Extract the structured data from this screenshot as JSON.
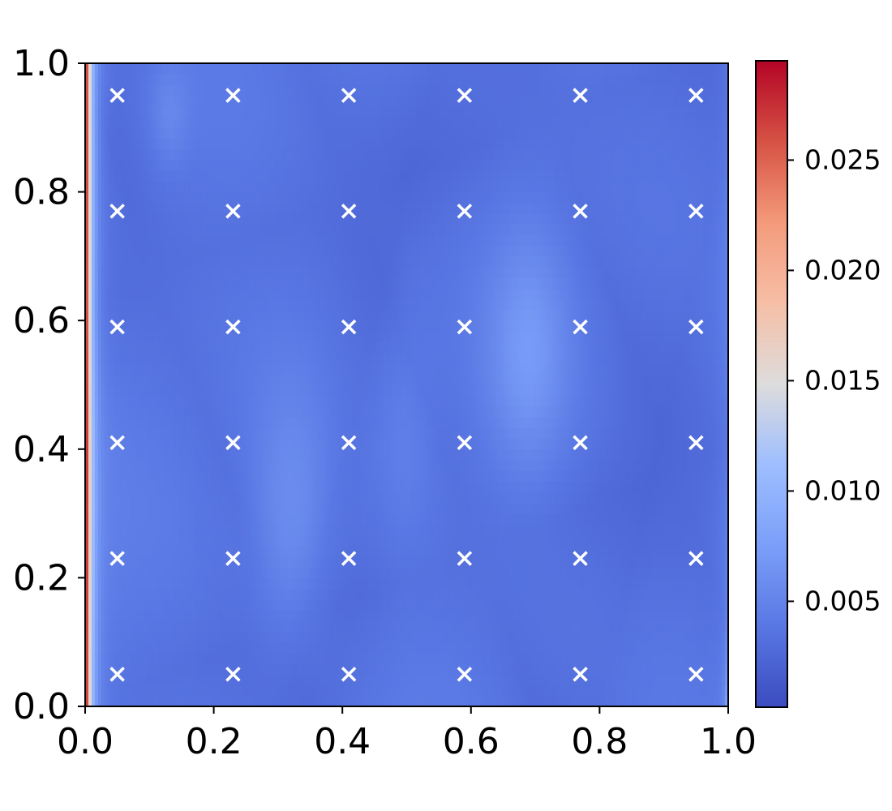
{
  "chart_data": {
    "type": "heatmap",
    "title": "",
    "xlabel": "",
    "ylabel": "",
    "xlim": [
      0.0,
      1.0
    ],
    "ylim": [
      0.0,
      1.0
    ],
    "x_ticks": [
      "0.0",
      "0.2",
      "0.4",
      "0.6",
      "0.8",
      "1.0"
    ],
    "y_ticks": [
      "0.0",
      "0.2",
      "0.4",
      "0.6",
      "0.8",
      "1.0"
    ],
    "x_tick_values": [
      0.0,
      0.2,
      0.4,
      0.6,
      0.8,
      1.0
    ],
    "y_tick_values": [
      0.0,
      0.2,
      0.4,
      0.6,
      0.8,
      1.0
    ],
    "colormap": "coolwarm",
    "colorbar": {
      "min": 0.0002,
      "max": 0.0295,
      "ticks": [
        "0.005",
        "0.010",
        "0.015",
        "0.020",
        "0.025"
      ],
      "tick_values": [
        0.005,
        0.01,
        0.015,
        0.02,
        0.025
      ]
    },
    "markers": {
      "symbol": "x",
      "color": "#ffffff",
      "x": [
        0.05,
        0.23,
        0.41,
        0.59,
        0.77,
        0.95
      ],
      "y": [
        0.05,
        0.23,
        0.41,
        0.59,
        0.77,
        0.95
      ]
    },
    "grid": false
  }
}
